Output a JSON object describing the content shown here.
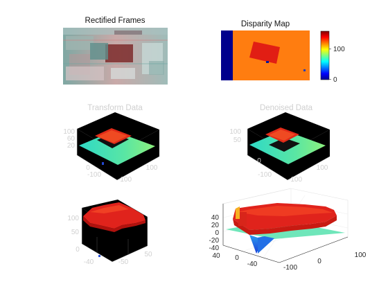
{
  "figure": {
    "panels": [
      {
        "title": "Rectified Frames"
      },
      {
        "title": "Disparity Map"
      },
      {
        "title": "Transform Data"
      },
      {
        "title": "Denoised Data"
      },
      {
        "title": ""
      },
      {
        "title": ""
      }
    ]
  },
  "colors": {
    "axis_black": "#262626",
    "faded_gray": "#d0d0d0",
    "disparity_background": "#ff7d10",
    "disparity_object": "#e11e14",
    "occlusion_blue": "#00008c",
    "plane_cyan": "#44e0b6",
    "surface_red": "#e0231c"
  },
  "chart_data": [
    {
      "type": "image",
      "title": "Rectified Frames",
      "description_of_content": "red-cyan anaglyph of stereo frames"
    },
    {
      "type": "heatmap",
      "title": "Disparity Map",
      "colorbar": {
        "ticks": [
          0,
          100
        ],
        "clim": [
          0,
          160
        ],
        "colormap": "jet"
      },
      "regions": [
        {
          "name": "background",
          "value": 115
        },
        {
          "name": "object",
          "value": 150
        },
        {
          "name": "left-occlusion",
          "value": 0
        }
      ]
    },
    {
      "type": "surface3d",
      "title": "Transform Data",
      "z_ticks": [
        100,
        60,
        20
      ],
      "x_ticks": [
        0,
        100
      ],
      "y_ticks": [
        -100,
        100,
        -100
      ],
      "faded": true
    },
    {
      "type": "surface3d",
      "title": "Denoised Data",
      "z_ticks": [
        100,
        50
      ],
      "x_ticks": [
        0,
        100
      ],
      "y_ticks": [
        -100,
        100,
        -100
      ],
      "faded": true
    },
    {
      "type": "surface3d",
      "title": "",
      "z_ticks": [
        100,
        50
      ],
      "x_ticks": [
        -40,
        0
      ],
      "y_ticks": [
        -50,
        50
      ],
      "faded": true
    },
    {
      "type": "surface3d",
      "title": "",
      "z_ticks": [
        40,
        20,
        0,
        -20,
        -40
      ],
      "x_ticks": [
        -100,
        0,
        100
      ],
      "y_ticks": [
        40,
        0,
        -40
      ],
      "zlim": [
        -40,
        40
      ]
    }
  ]
}
